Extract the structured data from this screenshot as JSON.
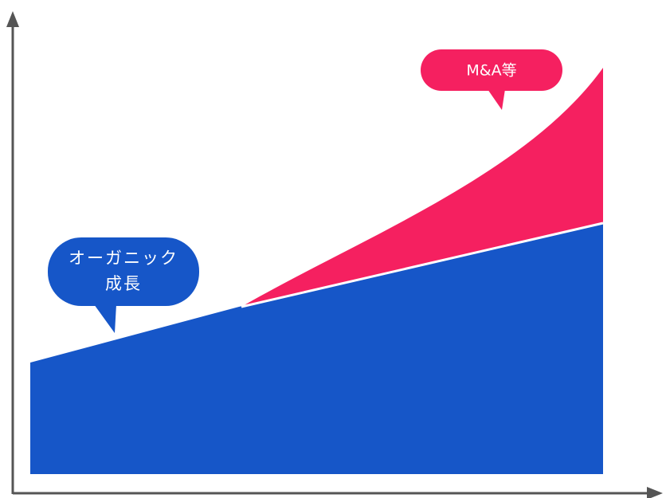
{
  "callouts": {
    "organic": {
      "lines": [
        "オーガニック",
        "成長"
      ]
    },
    "ma": {
      "text": "M&A等"
    }
  }
}
